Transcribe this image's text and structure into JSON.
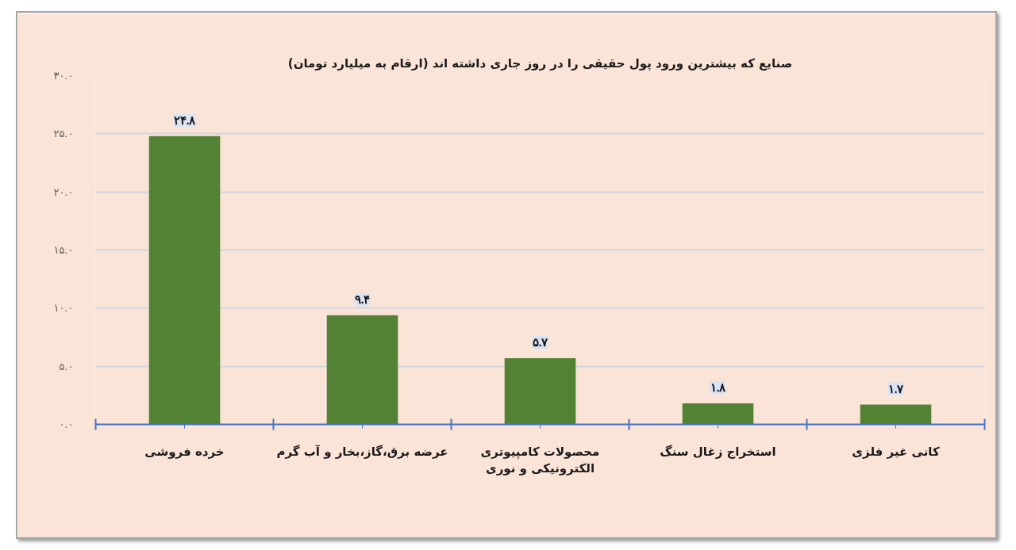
{
  "chart_data": {
    "type": "bar",
    "title": "صنایع که بیشترین ورود پول حقیقی را در روز جاری داشته اند (ارقام به میلیارد تومان)",
    "categories": [
      "خرده فروشی",
      "عرضه برق،گاز،بخار و آب گرم",
      "محصولات کامپیوتری الکترونیکی و نوری",
      "استخراج زغال سنگ",
      "کانی غیر فلزی"
    ],
    "values": [
      24.8,
      9.4,
      5.7,
      1.8,
      1.7
    ],
    "value_labels": [
      "۲۴.۸",
      "۹.۴",
      "۵.۷",
      "۱.۸",
      "۱.۷"
    ],
    "color": "#548235",
    "ylim": [
      0,
      30
    ],
    "yticks": [
      {
        "value": 0,
        "label": "۰.۰"
      },
      {
        "value": 5,
        "label": "۵.۰"
      },
      {
        "value": 10,
        "label": "۱۰.۰"
      },
      {
        "value": 15,
        "label": "۱۵.۰"
      },
      {
        "value": 20,
        "label": "۲۰.۰"
      },
      {
        "value": 25,
        "label": "۲۵.۰"
      },
      {
        "value": 30,
        "label": "۳۰.۰"
      }
    ],
    "grid": "y"
  }
}
